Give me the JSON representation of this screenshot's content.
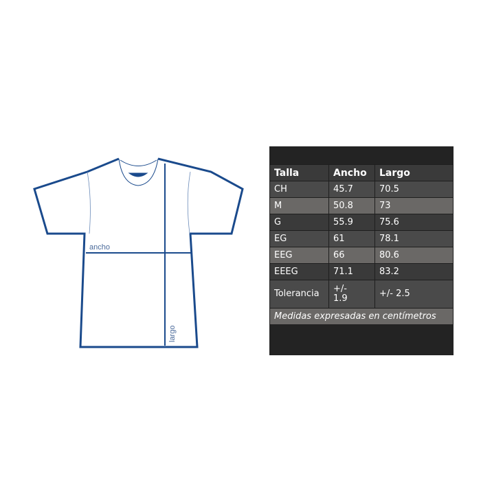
{
  "diagram": {
    "width_label": "ancho",
    "length_label": "largo",
    "line_color": "#1a4a8c"
  },
  "table": {
    "headers": [
      "Talla",
      "Ancho",
      "Largo"
    ],
    "rows": [
      [
        "CH",
        "45.7",
        "70.5"
      ],
      [
        "M",
        "50.8",
        "73"
      ],
      [
        "G",
        "55.9",
        "75.6"
      ],
      [
        "EG",
        "61",
        "78.1"
      ],
      [
        "EEG",
        "66",
        "80.6"
      ],
      [
        "EEEG",
        "71.1",
        "83.2"
      ],
      [
        "Tolerancia",
        "+/- 1.9",
        "+/- 2.5"
      ]
    ],
    "footer": "Medidas expresadas en centímetros"
  }
}
